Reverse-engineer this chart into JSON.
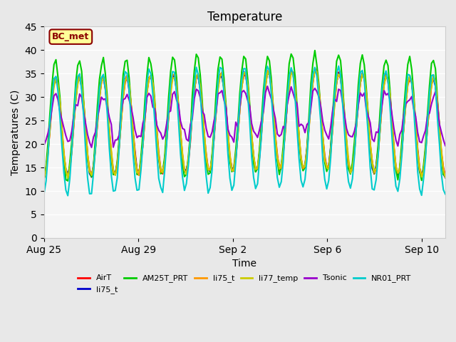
{
  "title": "Temperature",
  "xlabel": "Time",
  "ylabel": "Temperatures (C)",
  "annotation": "BC_met",
  "ylim": [
    0,
    45
  ],
  "yticks": [
    0,
    5,
    10,
    15,
    20,
    25,
    30,
    35,
    40,
    45
  ],
  "background_color": "#e8e8e8",
  "plot_background": "#f5f5f5",
  "series": [
    {
      "label": "AirT",
      "color": "#ff0000"
    },
    {
      "label": "li75_t",
      "color": "#0000cc"
    },
    {
      "label": "AM25T_PRT",
      "color": "#00cc00"
    },
    {
      "label": "li75_t",
      "color": "#ff9900"
    },
    {
      "label": "li77_temp",
      "color": "#cccc00"
    },
    {
      "label": "Tsonic",
      "color": "#9900cc"
    },
    {
      "label": "NR01_PRT",
      "color": "#00cccc"
    }
  ],
  "x_tick_labels": [
    "Aug 25",
    "Aug 29",
    "Sep 2",
    "Sep 6",
    "Sep 10"
  ],
  "x_tick_positions": [
    0,
    4,
    8,
    12,
    16
  ],
  "total_days": 17
}
